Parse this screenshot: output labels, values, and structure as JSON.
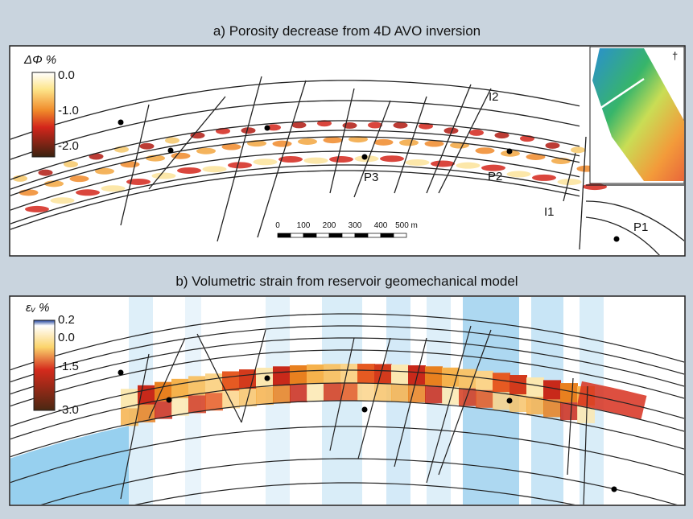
{
  "panel_a": {
    "title": "a) Porosity decrease from 4D AVO inversion",
    "colorbar": {
      "label": "ΔΦ %",
      "ticks": [
        "0.0",
        "-1.0",
        "-2.0"
      ]
    },
    "labels": [
      "I2",
      "P3",
      "P2",
      "I1",
      "P1"
    ],
    "scale_bar": [
      "0",
      "100",
      "200",
      "300",
      "400",
      "500 m"
    ]
  },
  "panel_b": {
    "title": "b) Volumetric strain from reservoir geomechanical model",
    "colorbar": {
      "label": "εᵥ %",
      "ticks": [
        "0.2",
        "0.0",
        "-1.5",
        "-3.0"
      ]
    }
  }
}
